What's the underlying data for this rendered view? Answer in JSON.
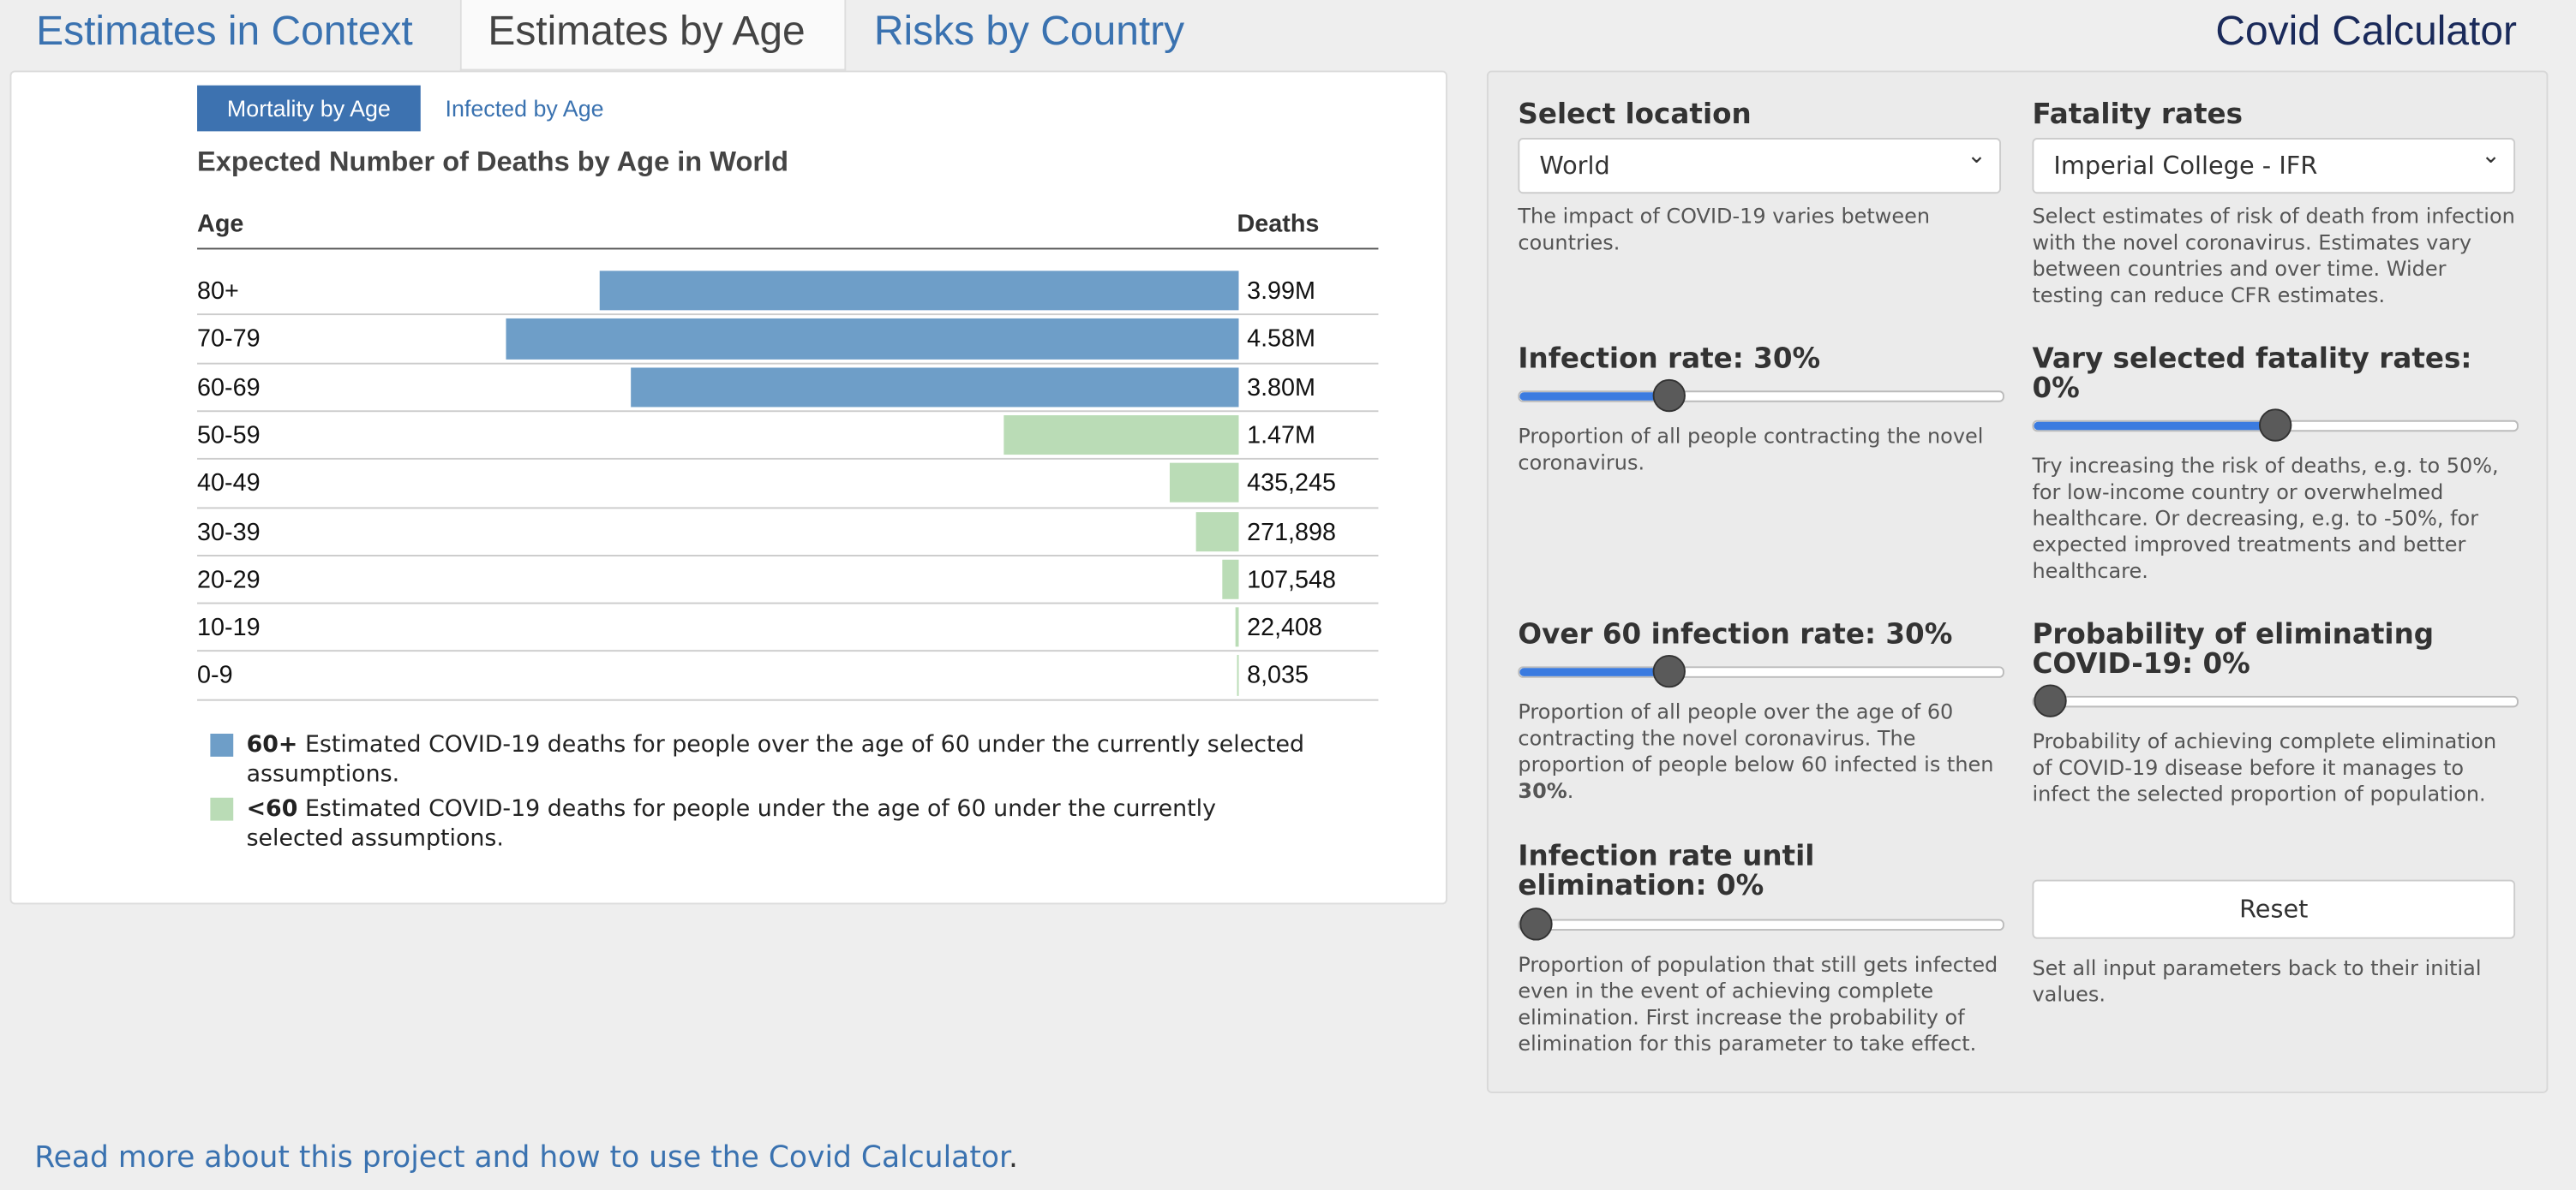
{
  "tabs": [
    "Estimates in Context",
    "Estimates by Age",
    "Risks by Country"
  ],
  "app_title": "Covid Calculator",
  "subtabs": [
    "Mortality by Age",
    "Infected by Age"
  ],
  "chart_data": {
    "type": "bar",
    "orientation": "horizontal",
    "title": "Expected Number of Deaths by Age in World",
    "category_header": "Age",
    "value_header": "Deaths",
    "categories": [
      "80+",
      "70-79",
      "60-69",
      "50-59",
      "40-49",
      "30-39",
      "20-29",
      "10-19",
      "0-9"
    ],
    "series": [
      {
        "name": "60+",
        "color": "#6e9ec8",
        "description": "Estimated COVID-19 deaths for people over the age of 60 under the currently selected assumptions.",
        "values": [
          3990000,
          4580000,
          3800000,
          null,
          null,
          null,
          null,
          null,
          null
        ],
        "value_labels": [
          "3.99M",
          "4.58M",
          "3.80M",
          null,
          null,
          null,
          null,
          null,
          null
        ]
      },
      {
        "name": "<60",
        "color": "#badcb6",
        "description": "Estimated COVID-19 deaths for people under the age of 60 under the currently selected assumptions.",
        "values": [
          null,
          null,
          null,
          1470000,
          435245,
          271898,
          107548,
          22408,
          8035
        ],
        "value_labels": [
          null,
          null,
          null,
          "1.47M",
          "435,245",
          "271,898",
          "107,548",
          "22,408",
          "8,035"
        ]
      }
    ]
  },
  "controls": {
    "location": {
      "label": "Select location",
      "value": "World",
      "description": "The impact of COVID-19 varies between countries."
    },
    "fatality": {
      "label": "Fatality rates",
      "value": "Imperial College - IFR",
      "description": "Select estimates of risk of death from infection with the novel coronavirus. Estimates vary between countries and over time. Wider testing can reduce CFR estimates."
    },
    "infection": {
      "label": "Infection rate: 30%",
      "description": "Proportion of all people contracting the novel coronavirus."
    },
    "vary": {
      "label": "Vary selected fatality rates: 0%",
      "description": "Try increasing the risk of deaths, e.g. to 50%, for low-income country or overwhelmed healthcare. Or decreasing, e.g. to -50%, for expected improved treatments and better healthcare."
    },
    "over60": {
      "label": "Over 60 infection rate: 30%",
      "description": "Proportion of all people over the age of 60 contracting the novel coronavirus. The proportion of people below 60 infected is then ",
      "description_bold": "30%",
      "description_end": "."
    },
    "elimination": {
      "label": "Probability of eliminating COVID-19: 0%",
      "description": "Probability of achieving complete elimination of COVID-19 disease before it manages to infect the selected proportion of population."
    },
    "until_elimination": {
      "label": "Infection rate until elimination: 0%",
      "description": "Proportion of population that still gets infected even in the event of achieving complete elimination. First increase the probability of elimination for this parameter to take effect."
    },
    "reset": {
      "label": "Reset",
      "description": "Set all input parameters back to their initial values."
    }
  },
  "footer": {
    "link": "Read more about this project and how to use the Covid Calculator",
    "after": "."
  }
}
